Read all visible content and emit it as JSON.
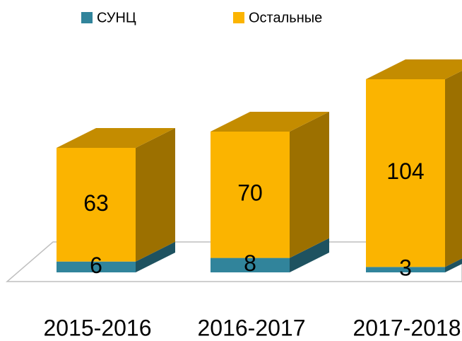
{
  "chart_data": {
    "type": "bar3d_stacked",
    "categories": [
      "2015-2016",
      "2016-2017",
      "2017-2018"
    ],
    "series": [
      {
        "name": "СУНЦ",
        "color": "#31849b",
        "values": [
          6,
          8,
          3
        ]
      },
      {
        "name": "Остальные",
        "color": "#fbb400",
        "values": [
          63,
          70,
          104
        ]
      }
    ],
    "legend": "top"
  }
}
